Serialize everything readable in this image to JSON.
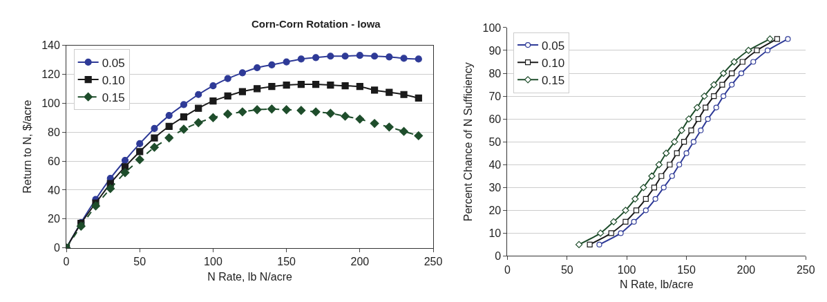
{
  "chart_data": [
    {
      "type": "line",
      "title": "Corn-Corn Rotation - Iowa",
      "xlabel": "N Rate, lb N/acre",
      "ylabel": "Return to N, $/acre",
      "x": [
        0,
        10,
        20,
        30,
        40,
        50,
        60,
        70,
        80,
        90,
        100,
        110,
        120,
        130,
        140,
        150,
        160,
        170,
        180,
        190,
        200,
        210,
        220,
        230,
        240
      ],
      "series": [
        {
          "name": "0.05",
          "color": "#2e3a97",
          "marker": "circle",
          "line_style": "solid",
          "values": [
            0,
            17.5,
            33.5,
            48,
            60.5,
            72,
            82.5,
            91.5,
            99,
            106,
            112,
            117,
            121,
            124.5,
            126.5,
            128.5,
            130.5,
            131.5,
            132.5,
            132.5,
            133,
            132.5,
            132,
            131,
            130.5
          ]
        },
        {
          "name": "0.10",
          "color": "#1a1a1a",
          "marker": "square",
          "line_style": "solid",
          "values": [
            0,
            17,
            31,
            44.5,
            56,
            66.5,
            76,
            84,
            90.5,
            96.5,
            101.5,
            105,
            108,
            110,
            111.5,
            112.5,
            113,
            113,
            112.5,
            112,
            111.5,
            109,
            107.5,
            106,
            103.5
          ]
        },
        {
          "name": "0.15",
          "color": "#1e4d2b",
          "marker": "diamond",
          "line_style": "dashed",
          "values": [
            0,
            15,
            29,
            41,
            52,
            61,
            69.5,
            76,
            82,
            86.5,
            90,
            92.5,
            94,
            95.5,
            96,
            95.5,
            95,
            94,
            93,
            91,
            89,
            86,
            83.5,
            80.5,
            77.5
          ]
        }
      ],
      "xlim": [
        0,
        250
      ],
      "xticks": [
        0,
        50,
        100,
        150,
        200,
        250
      ],
      "ylim": [
        0,
        140
      ],
      "yticks": [
        0,
        20,
        40,
        60,
        80,
        100,
        120,
        140
      ],
      "grid": "y",
      "legend": "top left"
    },
    {
      "type": "line",
      "xlabel": "N Rate, lb/acre",
      "ylabel": "Percent Chance of N Sufficiency",
      "series": [
        {
          "name": "0.05",
          "color": "#2e3a97",
          "marker": "circle",
          "x": [
            77,
            95,
            106,
            116,
            124,
            131,
            138,
            144,
            150,
            156,
            162,
            168,
            175,
            181,
            188,
            196,
            206,
            218,
            235
          ],
          "values": [
            5,
            10,
            15,
            20,
            25,
            30,
            35,
            40,
            45,
            50,
            55,
            60,
            65,
            70,
            75,
            80,
            85,
            90,
            95
          ]
        },
        {
          "name": "0.10",
          "color": "#1a1a1a",
          "marker": "square",
          "x": [
            69,
            87,
            99,
            108,
            116,
            123,
            129,
            136,
            142,
            148,
            154,
            160,
            166,
            173,
            180,
            188,
            197,
            209,
            226
          ],
          "values": [
            5,
            10,
            15,
            20,
            25,
            30,
            35,
            40,
            45,
            50,
            55,
            60,
            65,
            70,
            75,
            80,
            85,
            90,
            95
          ]
        },
        {
          "name": "0.15",
          "color": "#1e4d2b",
          "marker": "diamond",
          "x": [
            60,
            78,
            89,
            99,
            107,
            114,
            121,
            127,
            133,
            140,
            146,
            152,
            159,
            165,
            173,
            181,
            190,
            202,
            220
          ],
          "values": [
            5,
            10,
            15,
            20,
            25,
            30,
            35,
            40,
            45,
            50,
            55,
            60,
            65,
            70,
            75,
            80,
            85,
            90,
            95
          ]
        }
      ],
      "xlim": [
        0,
        250
      ],
      "xticks": [
        0,
        50,
        100,
        150,
        200,
        250
      ],
      "ylim": [
        0,
        100
      ],
      "yticks": [
        0,
        10,
        20,
        30,
        40,
        50,
        60,
        70,
        80,
        90,
        100
      ],
      "grid": "y",
      "legend": "top left"
    }
  ]
}
